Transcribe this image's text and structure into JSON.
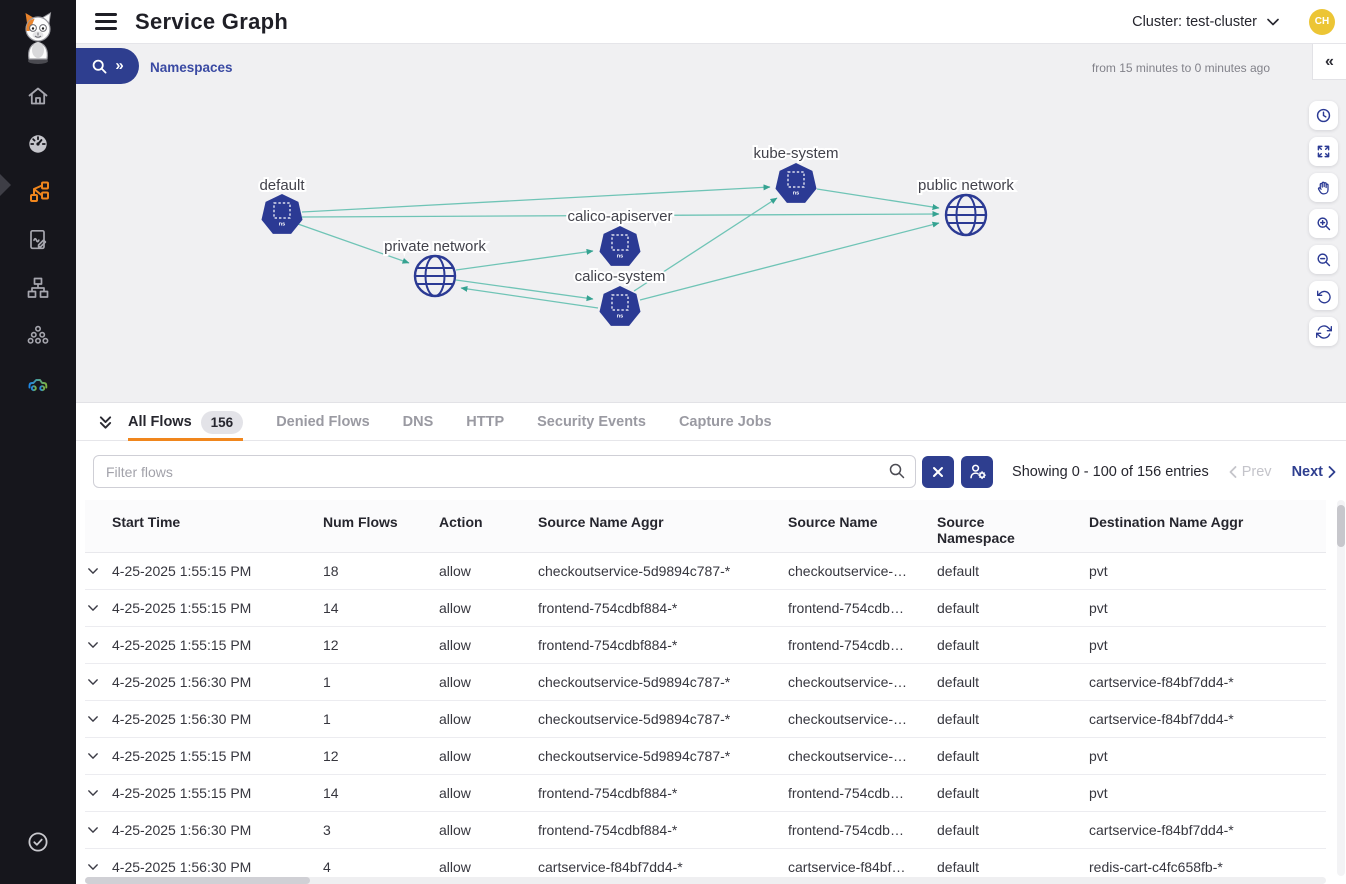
{
  "app": {
    "title": "Service Graph",
    "cluster_selector_label": "Cluster: test-cluster",
    "avatar_initials": "CH"
  },
  "breadcrumb": {
    "label": "Namespaces",
    "expand_icon": "»"
  },
  "graph": {
    "time_range_note": "from 15 minutes to 0 minutes ago",
    "collapse_icon": "«",
    "ns_badge": "ns",
    "nodes": [
      {
        "id": "default",
        "label": "default",
        "type": "namespace"
      },
      {
        "id": "private-network",
        "label": "private network",
        "type": "network"
      },
      {
        "id": "calico-apiserver",
        "label": "calico-apiserver",
        "type": "namespace"
      },
      {
        "id": "calico-system",
        "label": "calico-system",
        "type": "namespace"
      },
      {
        "id": "kube-system",
        "label": "kube-system",
        "type": "namespace"
      },
      {
        "id": "public-network",
        "label": "public network",
        "type": "network"
      }
    ],
    "edges": [
      "default → private network",
      "default → kube-system",
      "default → public network",
      "private network → calico-apiserver",
      "private network → calico-system",
      "calico-system → private network",
      "calico-system → kube-system",
      "calico-system → public network",
      "kube-system → public network"
    ],
    "toolbar_icons": [
      "time-range",
      "fit-to-screen",
      "pan",
      "zoom-in",
      "zoom-out",
      "undo",
      "refresh"
    ]
  },
  "flows_panel": {
    "tabs": [
      {
        "label": "All Flows",
        "badge": "156",
        "active": true
      },
      {
        "label": "Denied Flows",
        "active": false
      },
      {
        "label": "DNS",
        "active": false
      },
      {
        "label": "HTTP",
        "active": false
      },
      {
        "label": "Security Events",
        "active": false
      },
      {
        "label": "Capture Jobs",
        "active": false
      }
    ],
    "filter_placeholder": "Filter flows",
    "pagination": {
      "showing": "Showing 0 - 100 of 156 entries",
      "prev_label": "Prev",
      "next_label": "Next"
    },
    "table": {
      "columns": [
        "Start Time",
        "Num Flows",
        "Action",
        "Source Name Aggr",
        "Source Name",
        "Source Namespace",
        "Destination Name Aggr"
      ],
      "rows": [
        {
          "start_time": "4-25-2025 1:55:15 PM",
          "num_flows": "18",
          "action": "allow",
          "source_name_aggr": "checkoutservice-5d9894c787-*",
          "source_name": "checkoutservice-…",
          "source_namespace": "default",
          "dest_name_aggr": "pvt"
        },
        {
          "start_time": "4-25-2025 1:55:15 PM",
          "num_flows": "14",
          "action": "allow",
          "source_name_aggr": "frontend-754cdbf884-*",
          "source_name": "frontend-754cdb…",
          "source_namespace": "default",
          "dest_name_aggr": "pvt"
        },
        {
          "start_time": "4-25-2025 1:55:15 PM",
          "num_flows": "12",
          "action": "allow",
          "source_name_aggr": "frontend-754cdbf884-*",
          "source_name": "frontend-754cdb…",
          "source_namespace": "default",
          "dest_name_aggr": "pvt"
        },
        {
          "start_time": "4-25-2025 1:56:30 PM",
          "num_flows": "1",
          "action": "allow",
          "source_name_aggr": "checkoutservice-5d9894c787-*",
          "source_name": "checkoutservice-…",
          "source_namespace": "default",
          "dest_name_aggr": "cartservice-f84bf7dd4-*"
        },
        {
          "start_time": "4-25-2025 1:56:30 PM",
          "num_flows": "1",
          "action": "allow",
          "source_name_aggr": "checkoutservice-5d9894c787-*",
          "source_name": "checkoutservice-…",
          "source_namespace": "default",
          "dest_name_aggr": "cartservice-f84bf7dd4-*"
        },
        {
          "start_time": "4-25-2025 1:55:15 PM",
          "num_flows": "12",
          "action": "allow",
          "source_name_aggr": "checkoutservice-5d9894c787-*",
          "source_name": "checkoutservice-…",
          "source_namespace": "default",
          "dest_name_aggr": "pvt"
        },
        {
          "start_time": "4-25-2025 1:55:15 PM",
          "num_flows": "14",
          "action": "allow",
          "source_name_aggr": "frontend-754cdbf884-*",
          "source_name": "frontend-754cdb…",
          "source_namespace": "default",
          "dest_name_aggr": "pvt"
        },
        {
          "start_time": "4-25-2025 1:56:30 PM",
          "num_flows": "3",
          "action": "allow",
          "source_name_aggr": "frontend-754cdbf884-*",
          "source_name": "frontend-754cdb…",
          "source_namespace": "default",
          "dest_name_aggr": "cartservice-f84bf7dd4-*"
        },
        {
          "start_time": "4-25-2025 1:56:30 PM",
          "num_flows": "4",
          "action": "allow",
          "source_name_aggr": "cartservice-f84bf7dd4-*",
          "source_name": "cartservice-f84bf…",
          "source_namespace": "default",
          "dest_name_aggr": "redis-cart-c4fc658fb-*"
        }
      ]
    }
  },
  "colors": {
    "accent_navy": "#2e3e8f",
    "accent_orange": "#f0861d",
    "edge_teal": "#6fc4b6",
    "node_navy": "#2b3a94",
    "avatar_gold": "#ecc535",
    "sidebar_bg": "#16161c"
  }
}
